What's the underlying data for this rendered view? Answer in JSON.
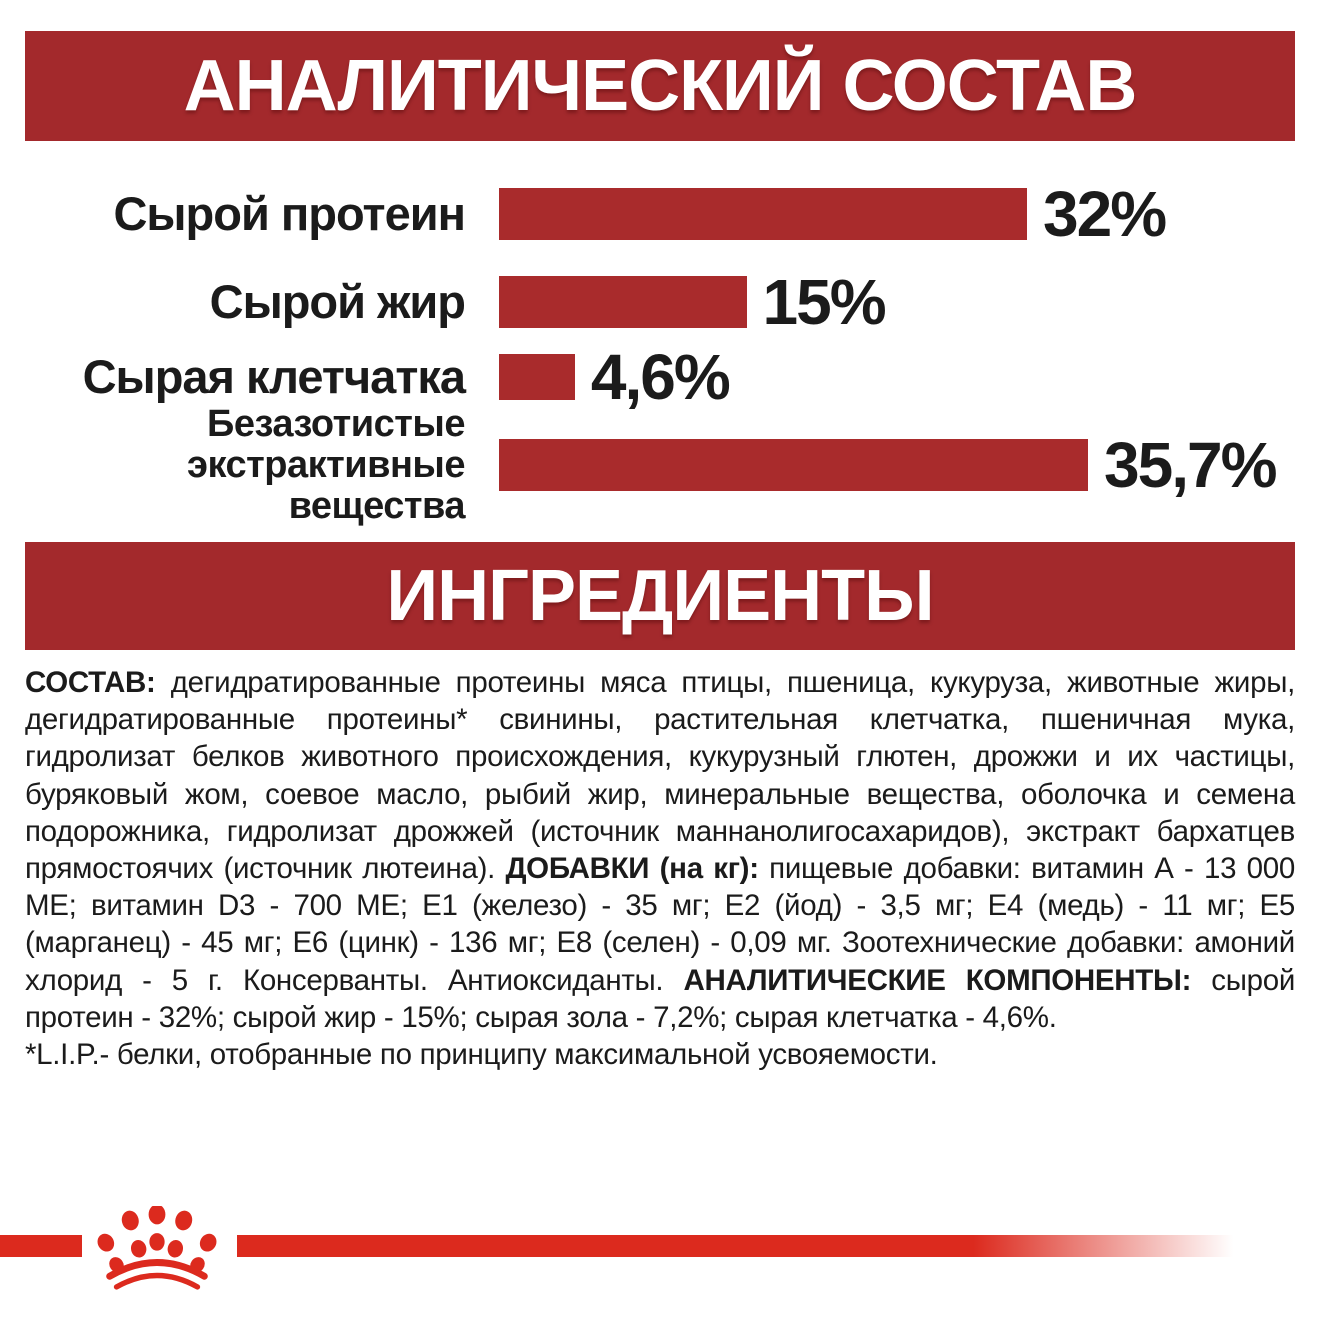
{
  "colors": {
    "banner_red": "#A3292C",
    "bar_red": "#A92B2C",
    "accent_red": "#DC2A1E",
    "text_black": "#1b1b1b",
    "banner_text": "#ffffff"
  },
  "header": {
    "title": "АНАЛИТИЧЕСКИЙ СОСТАВ"
  },
  "chart_data": {
    "type": "bar",
    "orientation": "horizontal",
    "title": "АНАЛИТИЧЕСКИЙ СОСТАВ",
    "unit": "%",
    "categories": [
      "Сырой протеин",
      "Сырой жир",
      "Сырая клетчатка",
      "Безазотистые экстрактивные вещества"
    ],
    "values": [
      32,
      15,
      4.6,
      35.7
    ],
    "value_labels": [
      "32%",
      "15%",
      "4,6%",
      "35,7%"
    ],
    "bar_color": "#A92B2C",
    "xlim": [
      0,
      40
    ],
    "grid": false,
    "legend": false
  },
  "ingredients": {
    "title": "ИНГРЕДИЕНТЫ",
    "paragraph": [
      {
        "bold": true,
        "text": "СОСТАВ:"
      },
      {
        "bold": false,
        "text": " дегидратированные протеины мяса птицы, пшеница, кукуруза, животные жиры, дегидратированные протеины* свинины, растительная клетчатка, пшеничная мука, гидролизат белков животного происхождения, кукурузный глютен, дрожжи и их частицы, буряковый жом, соевое масло, рыбий жир, минеральные вещества, оболочка и семена подорожника, гидролизат дрожжей (источник маннанолигосахаридов), экстракт бархатцев прямостоячих (источник лютеина). "
      },
      {
        "bold": true,
        "text": "ДОБАВКИ (на кг):"
      },
      {
        "bold": false,
        "text": " пищевые добавки: витамин А - 13 000 МЕ; витамин D3 - 700 МЕ; Е1 (железо) - 35 мг; Е2 (йод) - 3,5 мг; Е4 (медь) - 11 мг; Е5 (марганец) - 45 мг; Е6 (цинк) - 136 мг; Е8 (селен) - 0,09 мг. Зоотехнические добавки: амоний хлорид - 5 г. Консерванты. Антиоксиданты. "
      },
      {
        "bold": true,
        "text": "АНАЛИТИЧЕСКИЕ КОМПОНЕНТЫ:"
      },
      {
        "bold": false,
        "text": " сырой протеин - 32%; сырой жир - 15%; сырая зола - 7,2%; сырая клетчатка - 4,6%."
      }
    ],
    "footnote": "*L.I.P.- белки, отобранные по принципу максимальной усвояемости."
  },
  "footer": {
    "logo": "royal-canin-crown"
  }
}
